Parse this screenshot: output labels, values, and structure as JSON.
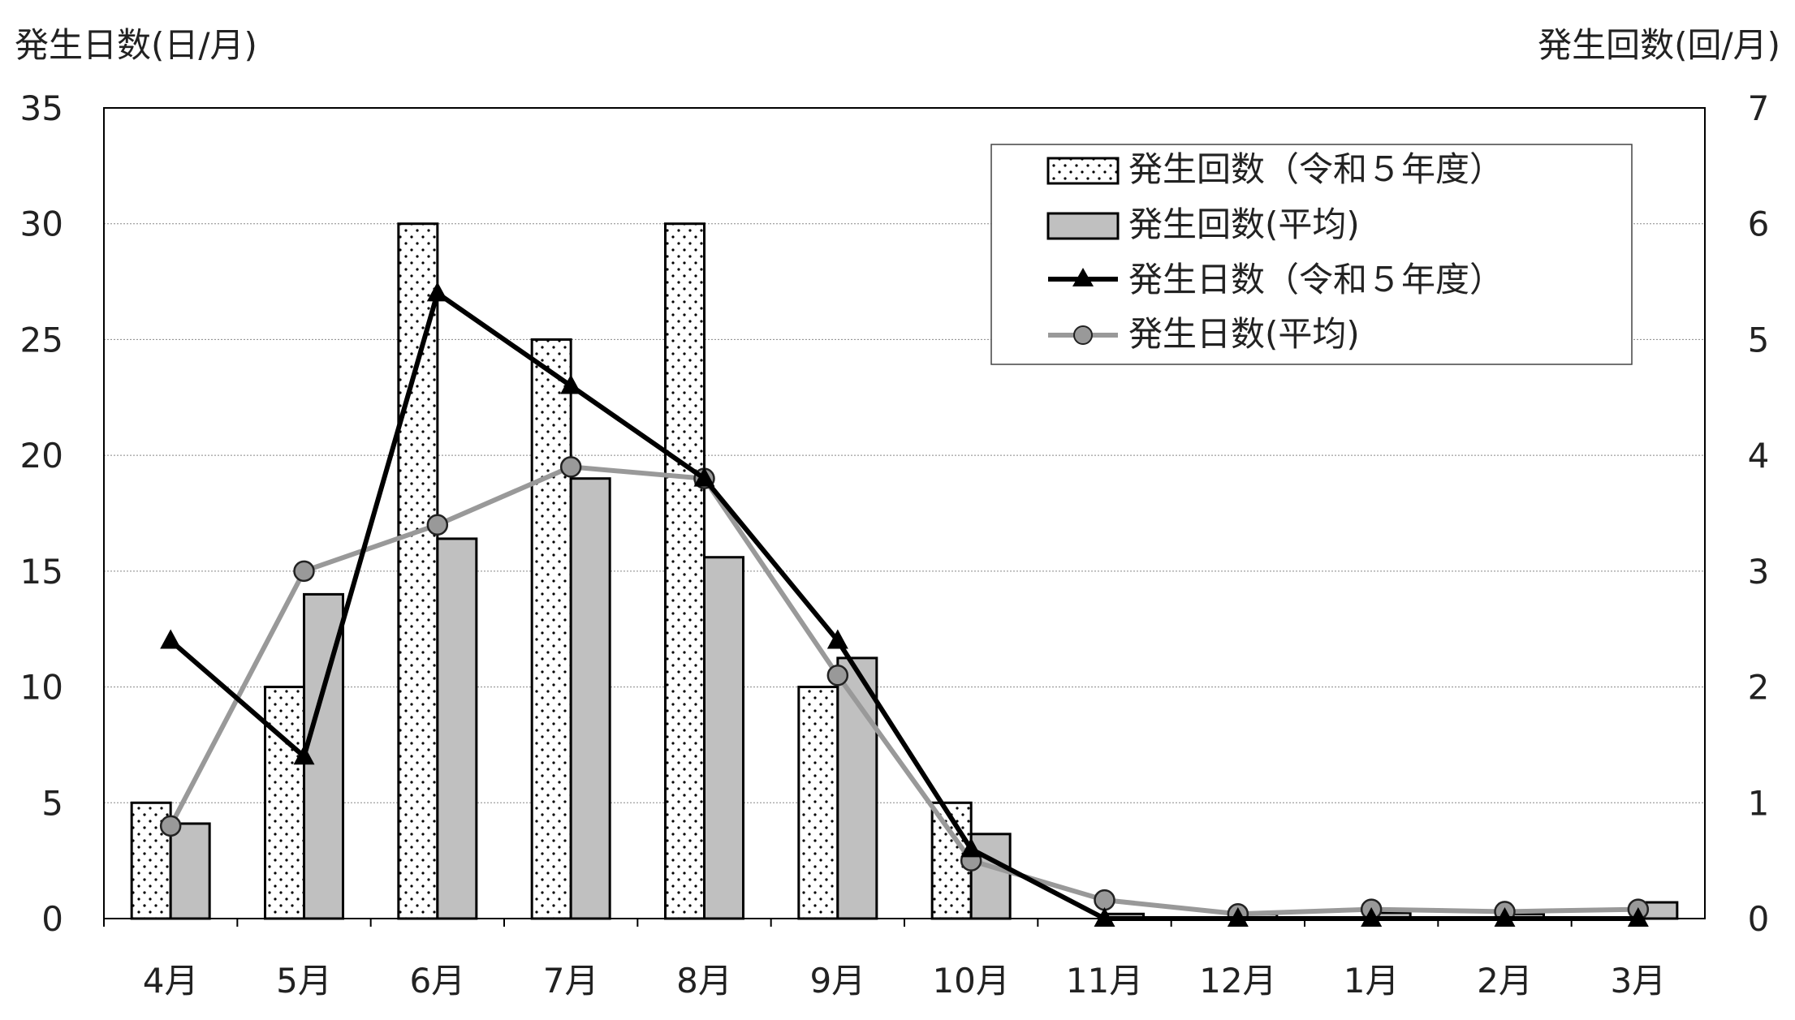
{
  "chart_data": {
    "type": "bar",
    "categories": [
      "4月",
      "5月",
      "6月",
      "7月",
      "8月",
      "9月",
      "10月",
      "11月",
      "12月",
      "1月",
      "2月",
      "3月"
    ],
    "y_left": {
      "label": "発生日数(日/月)",
      "ylim": [
        0,
        35
      ],
      "ticks": [
        0,
        5,
        10,
        15,
        20,
        25,
        30,
        35
      ]
    },
    "y_right": {
      "label": "発生回数(回/月)",
      "ylim": [
        0,
        7
      ],
      "ticks": [
        0,
        1,
        2,
        3,
        4,
        5,
        6,
        7
      ]
    },
    "grid": true,
    "legend_position": "top-right",
    "series": [
      {
        "name": "発生回数（令和５年度）",
        "kind": "bar",
        "axis": "right",
        "pattern": "dotted",
        "color": "#ffffff",
        "values": [
          1,
          2,
          6,
          5,
          6,
          2,
          1,
          0,
          0,
          0,
          0,
          0
        ]
      },
      {
        "name": "発生回数(平均)",
        "kind": "bar",
        "axis": "right",
        "pattern": "solid",
        "color": "#c0c0c0",
        "values": [
          0.82,
          2.8,
          3.28,
          3.8,
          3.12,
          2.25,
          0.73,
          0.04,
          0.04,
          0.05,
          0.04,
          0.14
        ]
      },
      {
        "name": "発生日数（令和５年度）",
        "kind": "line",
        "axis": "left",
        "marker": "triangle",
        "color": "#000000",
        "values": [
          12,
          7,
          27,
          23,
          19,
          12,
          3,
          0,
          0,
          0,
          0,
          0
        ]
      },
      {
        "name": "発生日数(平均)",
        "kind": "line",
        "axis": "left",
        "marker": "circle",
        "color": "#999999",
        "values": [
          4,
          15,
          17,
          19.5,
          19,
          10.5,
          2.5,
          0.8,
          0.2,
          0.4,
          0.3,
          0.4
        ]
      }
    ]
  }
}
